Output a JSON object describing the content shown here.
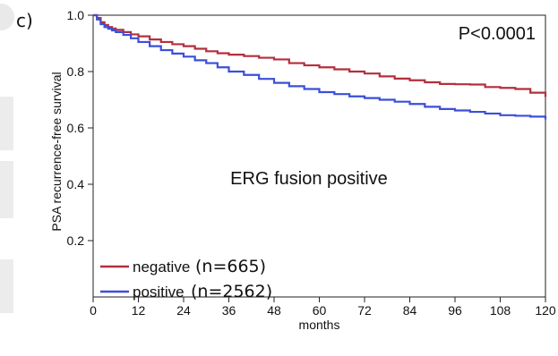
{
  "panel_label": "c)",
  "chart_data": {
    "type": "line",
    "title": "ERG fusion positive",
    "pvalue": "P<0.0001",
    "xlabel": "months",
    "ylabel": "PSA recurrence-free survival",
    "xlim": [
      0,
      120
    ],
    "ylim": [
      0.0,
      1.0
    ],
    "xticks": [
      0,
      12,
      24,
      36,
      48,
      60,
      72,
      84,
      96,
      108,
      120
    ],
    "yticks": [
      0.2,
      0.4,
      0.6,
      0.8,
      1.0
    ],
    "ytick_labels": [
      "0.2",
      "0.4",
      "0.6",
      "0.8",
      "1.0"
    ],
    "grid": false,
    "legend_position": "bottom-left",
    "series": [
      {
        "name": "negative",
        "legend_label": "negative",
        "count_label": "(n=665)",
        "color": "#b32f3d",
        "x": [
          0,
          1,
          2,
          3,
          4,
          5,
          6,
          8,
          10,
          12,
          15,
          18,
          21,
          24,
          27,
          30,
          33,
          36,
          40,
          44,
          48,
          52,
          56,
          60,
          64,
          68,
          72,
          76,
          80,
          84,
          88,
          92,
          96,
          100,
          104,
          108,
          112,
          116,
          120
        ],
        "y": [
          1.0,
          0.99,
          0.975,
          0.965,
          0.958,
          0.953,
          0.948,
          0.94,
          0.932,
          0.925,
          0.914,
          0.905,
          0.897,
          0.89,
          0.881,
          0.872,
          0.865,
          0.86,
          0.855,
          0.849,
          0.843,
          0.83,
          0.822,
          0.815,
          0.808,
          0.8,
          0.793,
          0.783,
          0.775,
          0.769,
          0.762,
          0.756,
          0.755,
          0.754,
          0.745,
          0.742,
          0.738,
          0.725,
          0.71
        ]
      },
      {
        "name": "positive",
        "legend_label": "positive",
        "count_label": "(n=2562)",
        "color": "#3b4fd8",
        "x": [
          0,
          1,
          2,
          3,
          4,
          5,
          6,
          8,
          10,
          12,
          15,
          18,
          21,
          24,
          27,
          30,
          33,
          36,
          40,
          44,
          48,
          52,
          56,
          60,
          64,
          68,
          72,
          76,
          80,
          84,
          88,
          92,
          96,
          100,
          104,
          108,
          112,
          116,
          120
        ],
        "y": [
          1.0,
          0.985,
          0.968,
          0.958,
          0.952,
          0.946,
          0.94,
          0.93,
          0.918,
          0.905,
          0.89,
          0.876,
          0.864,
          0.853,
          0.84,
          0.83,
          0.815,
          0.8,
          0.788,
          0.774,
          0.76,
          0.748,
          0.738,
          0.727,
          0.72,
          0.712,
          0.706,
          0.7,
          0.693,
          0.685,
          0.675,
          0.667,
          0.662,
          0.657,
          0.651,
          0.645,
          0.643,
          0.64,
          0.63
        ]
      }
    ]
  }
}
